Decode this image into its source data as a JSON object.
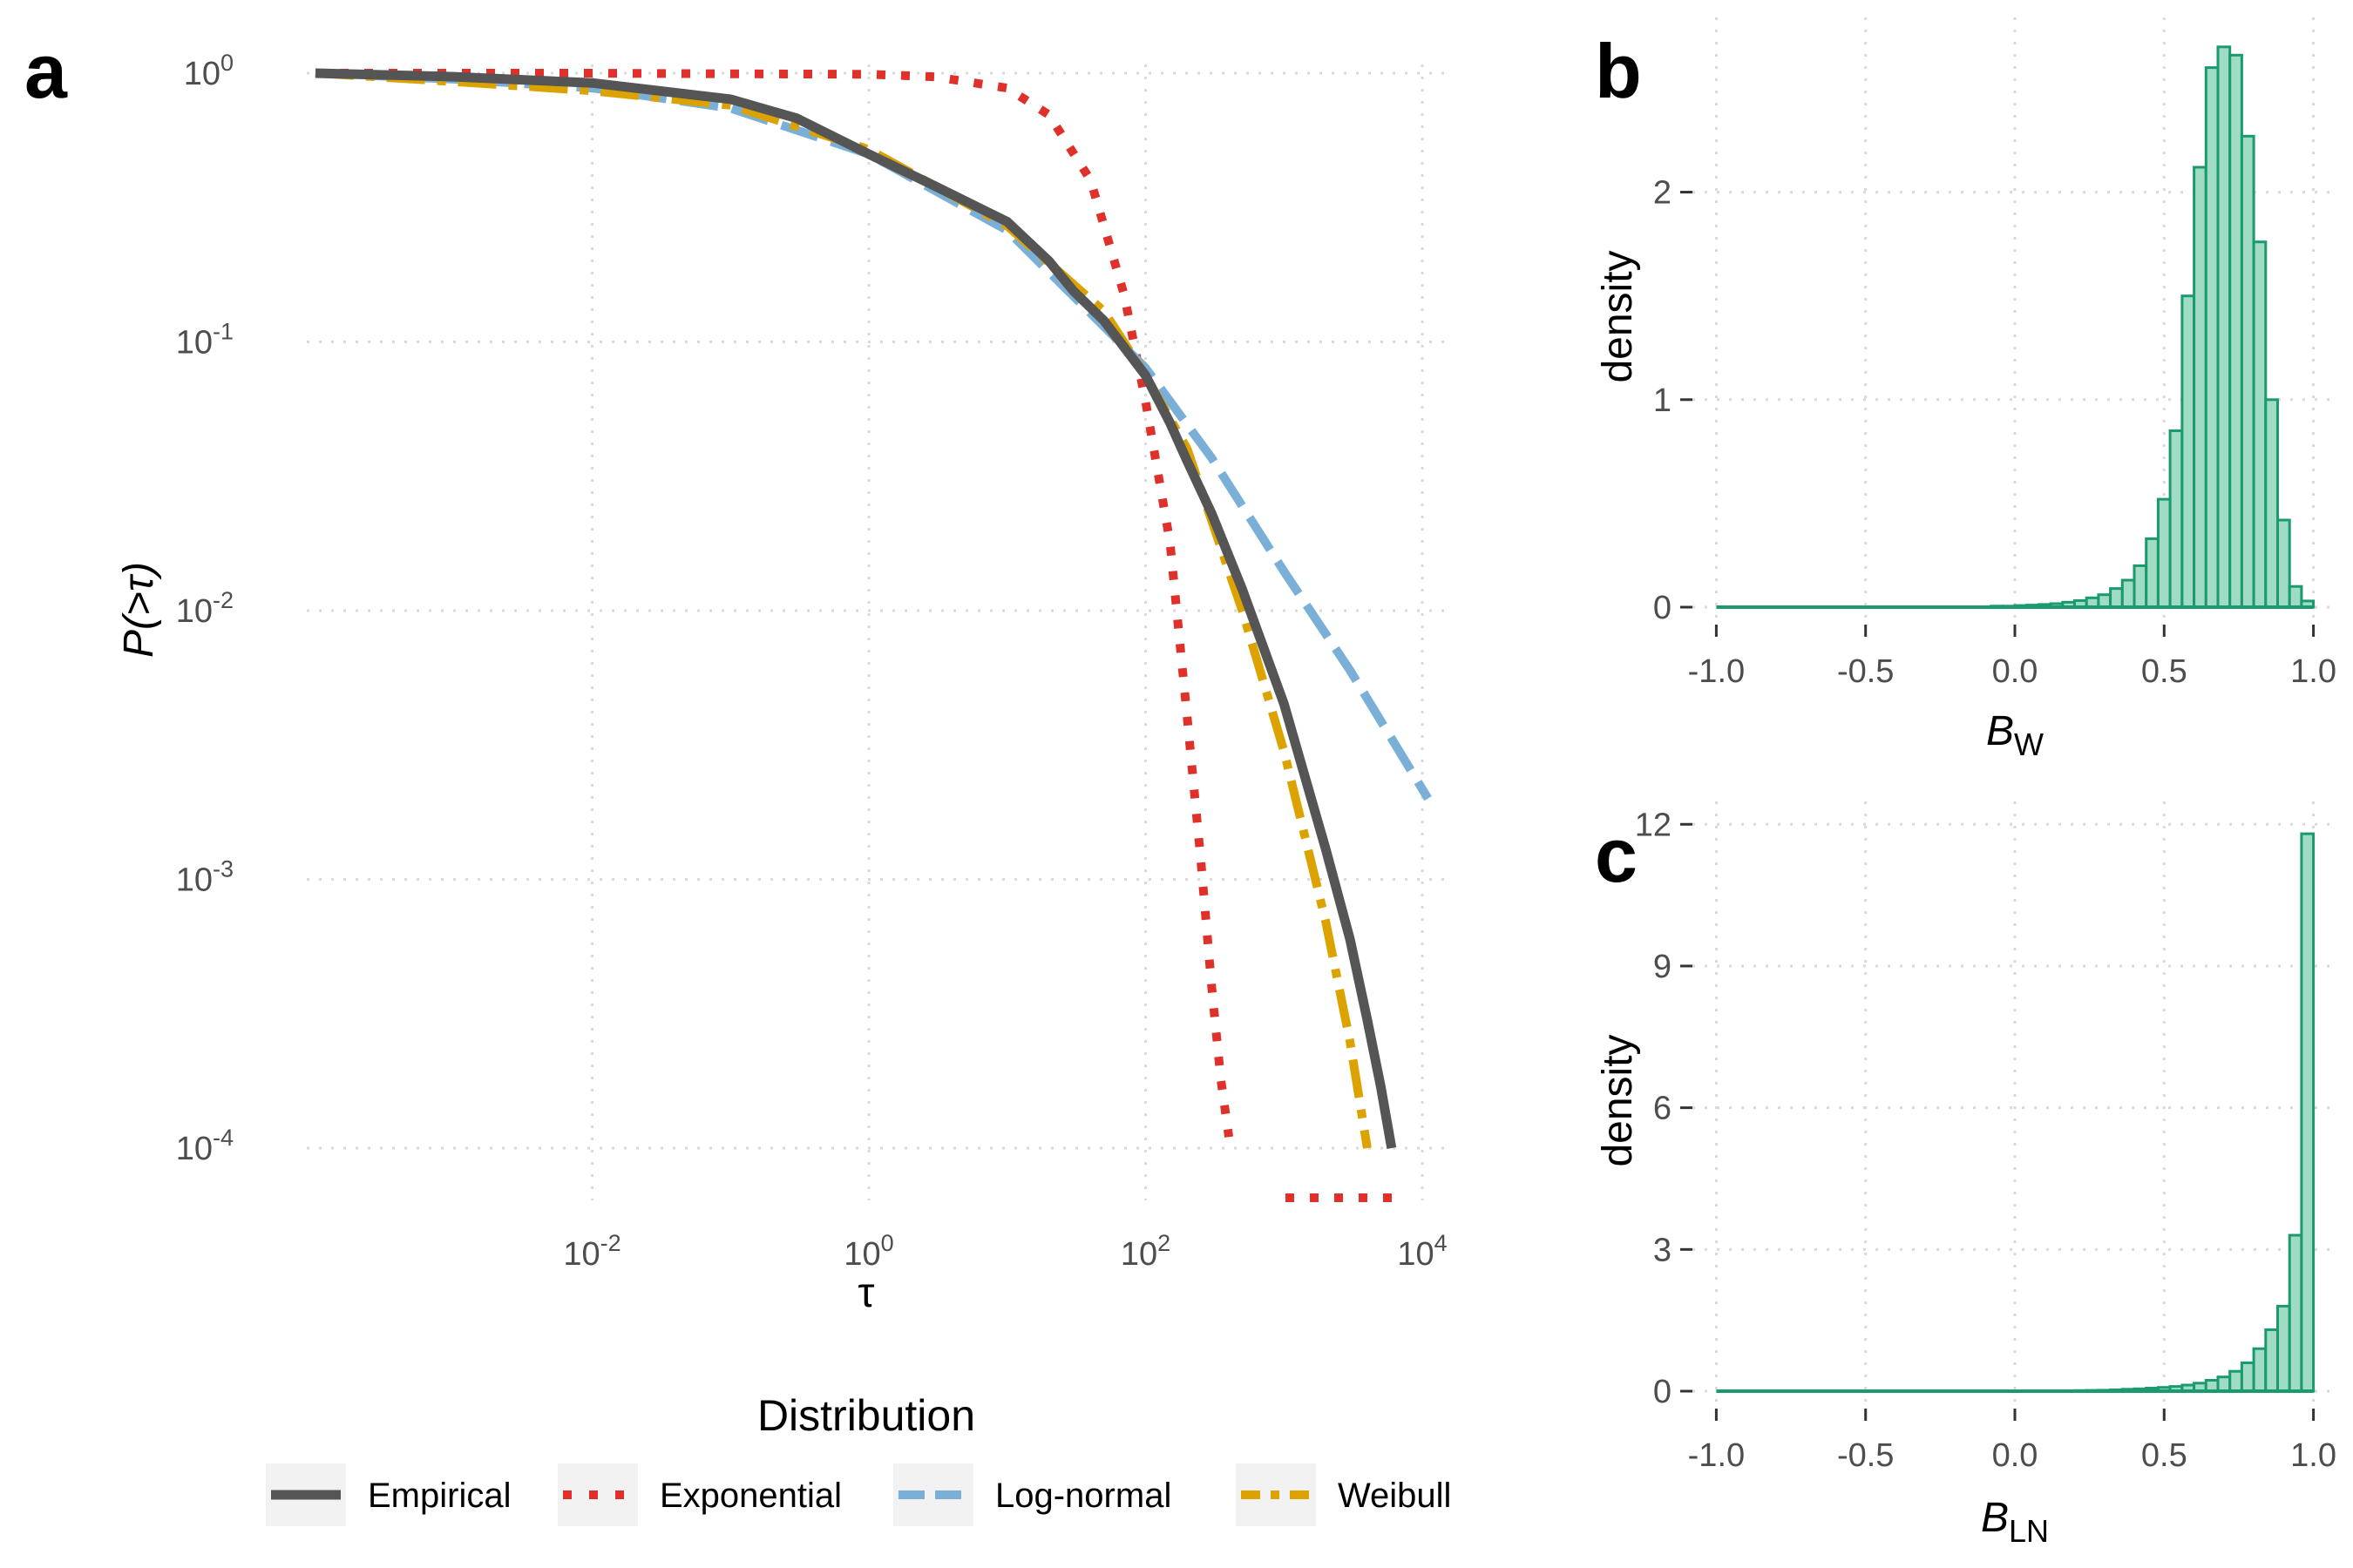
{
  "colors": {
    "empirical": "#555555",
    "exponential": "#e0302a",
    "lognormal": "#7ab0d8",
    "weibull": "#dca300",
    "hist_fill": "#9fdcc3",
    "hist_stroke": "#1a9a6e"
  },
  "chart_data": [
    {
      "panel": "a",
      "type": "line",
      "xlabel": "τ",
      "ylabel": "P(>τ)",
      "x_scale": "log10",
      "y_scale": "log10",
      "xlim": [
        0.0001,
        15000
      ],
      "ylim": [
        0.0001,
        1
      ],
      "x_ticks": [
        0.01,
        1,
        100,
        10000
      ],
      "y_ticks": [
        1,
        0.1,
        0.01,
        0.001,
        0.0001
      ],
      "x_tick_labels": [
        {
          "base": "10",
          "exp": "-2"
        },
        {
          "base": "10",
          "exp": "0"
        },
        {
          "base": "10",
          "exp": "2"
        },
        {
          "base": "10",
          "exp": "4"
        }
      ],
      "y_tick_labels": [
        {
          "base": "10",
          "exp": "0"
        },
        {
          "base": "10",
          "exp": "-1"
        },
        {
          "base": "10",
          "exp": "-2"
        },
        {
          "base": "10",
          "exp": "-3"
        },
        {
          "base": "10",
          "exp": "-4"
        }
      ],
      "grid": true,
      "legend_title": "Distribution",
      "legend_position": "bottom",
      "series": [
        {
          "name": "Empirical",
          "style": "solid",
          "color_key": "empirical",
          "x": [
            0.0001,
            0.001,
            0.01,
            0.1,
            0.3,
            1,
            3,
            10,
            20,
            30,
            50,
            100,
            150,
            200,
            300,
            500,
            1000,
            2000,
            3000,
            4000,
            5000,
            6000
          ],
          "y": [
            1.0,
            0.97,
            0.92,
            0.8,
            0.68,
            0.5,
            0.38,
            0.28,
            0.2,
            0.155,
            0.12,
            0.075,
            0.05,
            0.036,
            0.023,
            0.012,
            0.0045,
            0.0013,
            0.0006,
            0.0003,
            0.00017,
            0.0001
          ]
        },
        {
          "name": "Exponential",
          "style": "dotted",
          "color_key": "exponential",
          "x": [
            0.0001,
            0.01,
            0.1,
            1,
            3,
            10,
            20,
            40,
            70,
            100,
            150,
            200,
            250,
            300,
            350,
            400
          ],
          "y": [
            1.0,
            1.0,
            0.995,
            0.99,
            0.97,
            0.88,
            0.7,
            0.4,
            0.15,
            0.06,
            0.018,
            0.004,
            0.0012,
            0.0004,
            0.00018,
            0.00011
          ]
        },
        {
          "name": "Log-normal",
          "style": "dashed",
          "color_key": "lognormal",
          "x": [
            0.0001,
            0.001,
            0.01,
            0.1,
            1,
            10,
            100,
            300,
            1000,
            3000,
            11000
          ],
          "y": [
            1.0,
            0.95,
            0.88,
            0.74,
            0.5,
            0.26,
            0.08,
            0.037,
            0.014,
            0.006,
            0.002
          ]
        },
        {
          "name": "Weibull",
          "style": "dotdash",
          "color_key": "weibull",
          "x": [
            0.0001,
            0.001,
            0.01,
            0.1,
            1,
            10,
            50,
            100,
            200,
            500,
            1000,
            2000,
            3000,
            4000
          ],
          "y": [
            1.0,
            0.93,
            0.86,
            0.76,
            0.52,
            0.27,
            0.13,
            0.075,
            0.04,
            0.01,
            0.003,
            0.0007,
            0.00025,
            0.0001
          ]
        }
      ]
    },
    {
      "panel": "b",
      "type": "bar",
      "xlabel": "B",
      "xlabel_sub": "W",
      "ylabel": "density",
      "xlim": [
        -1.08,
        1.08
      ],
      "ylim": [
        0,
        2.8
      ],
      "x_ticks": [
        -1.0,
        -0.5,
        0.0,
        0.5,
        1.0
      ],
      "x_tick_labels": [
        "-1.0",
        "-0.5",
        "0.0",
        "0.5",
        "1.0"
      ],
      "y_ticks": [
        0,
        1,
        2
      ],
      "y_tick_labels": [
        "0",
        "1",
        "2"
      ],
      "grid": true,
      "bin_width": 0.04,
      "bin_start": -1.0,
      "values": [
        0,
        0,
        0,
        0,
        0,
        0,
        0,
        0,
        0,
        0,
        0,
        0,
        0,
        0,
        0,
        0,
        0,
        0,
        0,
        0,
        0,
        0,
        0,
        0.005,
        0.005,
        0.008,
        0.01,
        0.013,
        0.017,
        0.024,
        0.032,
        0.045,
        0.06,
        0.09,
        0.13,
        0.2,
        0.33,
        0.52,
        0.85,
        1.5,
        2.12,
        2.6,
        2.7,
        2.66,
        2.27,
        1.76,
        1.0,
        0.42,
        0.1,
        0.03
      ]
    },
    {
      "panel": "c",
      "type": "bar",
      "xlabel": "B",
      "xlabel_sub": "LN",
      "ylabel": "density",
      "xlim": [
        -1.08,
        1.08
      ],
      "ylim": [
        0,
        12.3
      ],
      "x_ticks": [
        -1.0,
        -0.5,
        0.0,
        0.5,
        1.0
      ],
      "x_tick_labels": [
        "-1.0",
        "-0.5",
        "0.0",
        "0.5",
        "1.0"
      ],
      "y_ticks": [
        0,
        3,
        6,
        9,
        12
      ],
      "y_tick_labels": [
        "0",
        "3",
        "6",
        "9",
        "12"
      ],
      "grid": true,
      "bin_width": 0.04,
      "bin_start": -1.0,
      "values": [
        0,
        0,
        0,
        0,
        0,
        0,
        0,
        0,
        0,
        0,
        0,
        0,
        0,
        0,
        0,
        0,
        0,
        0,
        0,
        0,
        0,
        0,
        0,
        0,
        0,
        0,
        0,
        0,
        0.005,
        0.008,
        0.012,
        0.016,
        0.02,
        0.03,
        0.04,
        0.05,
        0.065,
        0.08,
        0.1,
        0.13,
        0.17,
        0.23,
        0.3,
        0.42,
        0.6,
        0.9,
        1.3,
        1.8,
        3.3,
        11.8
      ]
    }
  ],
  "panel_labels": {
    "a": "a",
    "b": "b",
    "c": "c"
  }
}
